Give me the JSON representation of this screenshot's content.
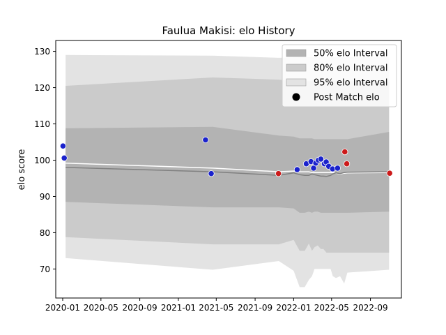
{
  "chart_data": {
    "type": "line",
    "title": "Faulua Makisi: elo History",
    "xlabel": "",
    "ylabel": "elo score",
    "xlim": [
      "2019-12-10",
      "2022-12-08"
    ],
    "ylim": [
      62,
      133
    ],
    "x_ticks": [
      "2020-01",
      "2020-05",
      "2020-09",
      "2021-01",
      "2021-05",
      "2021-09",
      "2022-01",
      "2022-05",
      "2022-09"
    ],
    "y_ticks": [
      70,
      80,
      90,
      100,
      110,
      120,
      130
    ],
    "grid": false,
    "legend_position": "top-right",
    "legend": [
      {
        "label": "50% elo Interval",
        "kind": "band",
        "color": "#b3b3b3"
      },
      {
        "label": "80% elo Interval",
        "kind": "band",
        "color": "#cbcbcb"
      },
      {
        "label": "95% elo Interval",
        "kind": "band",
        "color": "#e3e3e3"
      },
      {
        "label": "Post Match elo",
        "kind": "marker",
        "color": "#000000"
      }
    ],
    "x": [
      "2020-01-10",
      "2021-04-20",
      "2021-11-15",
      "2022-01-01",
      "2022-01-20",
      "2022-02-05",
      "2022-02-18",
      "2022-02-28",
      "2022-03-08",
      "2022-03-18",
      "2022-03-28",
      "2022-04-05",
      "2022-04-15",
      "2022-04-28",
      "2022-05-05",
      "2022-05-15",
      "2022-05-28",
      "2022-06-10",
      "2022-06-20",
      "2022-10-30"
    ],
    "bands": {
      "ci95": {
        "upper": [
          129.0,
          128.8,
          128.2,
          128.3,
          128.4,
          128.4,
          128.4,
          128.4,
          128.4,
          128.4,
          128.4,
          128.4,
          128.4,
          128.4,
          128.4,
          128.4,
          128.4,
          128.4,
          128.4,
          128.4
        ],
        "lower": [
          73.0,
          69.8,
          72.2,
          69.5,
          65.0,
          65.0,
          67.0,
          68.0,
          70.0,
          70.0,
          70.0,
          70.0,
          70.0,
          70.0,
          68.0,
          67.5,
          68.0,
          66.0,
          69.0,
          69.8
        ]
      },
      "ci80": {
        "upper": [
          120.5,
          122.8,
          122.2,
          121.8,
          121.8,
          121.8,
          121.8,
          121.8,
          121.8,
          121.8,
          121.8,
          121.8,
          121.8,
          121.8,
          121.8,
          121.8,
          121.8,
          121.8,
          121.8,
          121.8
        ],
        "lower": [
          78.8,
          76.8,
          76.8,
          78.0,
          75.0,
          75.0,
          77.0,
          75.0,
          76.0,
          76.5,
          75.5,
          75.5,
          74.5,
          74.5,
          74.5,
          74.5,
          74.5,
          74.5,
          74.5,
          74.5
        ]
      },
      "ci50": {
        "upper": [
          108.8,
          109.2,
          106.8,
          106.5,
          106.0,
          106.0,
          106.0,
          106.0,
          105.8,
          105.8,
          105.8,
          105.8,
          105.8,
          105.8,
          105.8,
          105.8,
          105.8,
          105.8,
          105.8,
          107.8
        ],
        "lower": [
          88.5,
          87.0,
          87.0,
          86.7,
          85.5,
          85.5,
          85.8,
          85.5,
          85.8,
          85.8,
          85.5,
          85.5,
          85.5,
          85.5,
          85.5,
          85.5,
          85.5,
          85.5,
          85.5,
          85.8
        ]
      }
    },
    "series": [
      {
        "role": "mean",
        "color": "#ffffff",
        "values": [
          99.2,
          97.8,
          96.8,
          97.0,
          96.8,
          96.8,
          96.8,
          96.6,
          96.6,
          96.6,
          96.6,
          96.6,
          96.6,
          96.6,
          96.6,
          96.4,
          96.2,
          96.4,
          96.5,
          96.6
        ]
      },
      {
        "role": "median",
        "color": "#808080",
        "values": [
          98.0,
          96.8,
          95.8,
          96.5,
          96.0,
          95.8,
          95.8,
          96.2,
          96.0,
          95.8,
          95.6,
          95.6,
          95.5,
          95.8,
          96.2,
          96.5,
          96.3,
          96.6,
          96.7,
          96.8
        ]
      }
    ],
    "points": [
      {
        "x": "2020-01-02",
        "y": 103.9,
        "color": "#1a22cc"
      },
      {
        "x": "2020-01-06",
        "y": 100.6,
        "color": "#1a22cc"
      },
      {
        "x": "2021-03-28",
        "y": 105.6,
        "color": "#1a22cc"
      },
      {
        "x": "2021-04-15",
        "y": 96.3,
        "color": "#1a22cc"
      },
      {
        "x": "2021-11-14",
        "y": 96.3,
        "color": "#cc1a1a"
      },
      {
        "x": "2022-01-12",
        "y": 97.4,
        "color": "#1a22cc"
      },
      {
        "x": "2022-02-10",
        "y": 99.0,
        "color": "#1a22cc"
      },
      {
        "x": "2022-02-25",
        "y": 99.6,
        "color": "#1a22cc"
      },
      {
        "x": "2022-03-05",
        "y": 97.8,
        "color": "#1a22cc"
      },
      {
        "x": "2022-03-12",
        "y": 99.2,
        "color": "#1a22cc"
      },
      {
        "x": "2022-03-20",
        "y": 100.0,
        "color": "#1a22cc"
      },
      {
        "x": "2022-03-28",
        "y": 100.3,
        "color": "#1a22cc"
      },
      {
        "x": "2022-04-08",
        "y": 99.0,
        "color": "#1a22cc"
      },
      {
        "x": "2022-04-14",
        "y": 99.5,
        "color": "#1a22cc"
      },
      {
        "x": "2022-04-22",
        "y": 98.3,
        "color": "#1a22cc"
      },
      {
        "x": "2022-05-04",
        "y": 97.6,
        "color": "#1a22cc"
      },
      {
        "x": "2022-05-20",
        "y": 97.8,
        "color": "#1a22cc"
      },
      {
        "x": "2022-06-12",
        "y": 102.3,
        "color": "#cc1a1a"
      },
      {
        "x": "2022-06-18",
        "y": 99.0,
        "color": "#cc1a1a"
      },
      {
        "x": "2022-11-01",
        "y": 96.4,
        "color": "#cc1a1a"
      }
    ]
  }
}
